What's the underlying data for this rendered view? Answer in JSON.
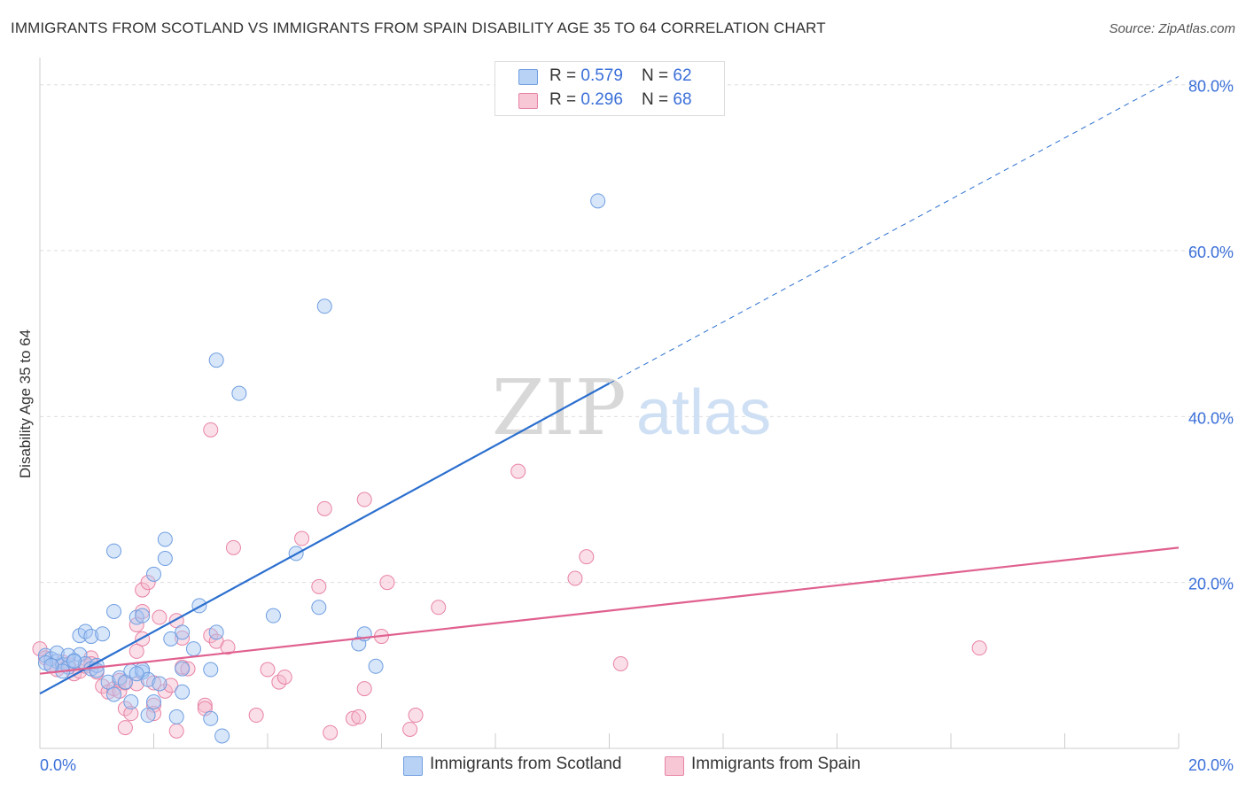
{
  "title": "IMMIGRANTS FROM SCOTLAND VS IMMIGRANTS FROM SPAIN DISABILITY AGE 35 TO 64 CORRELATION CHART",
  "source": "Source: ZipAtlas.com",
  "watermark": {
    "zip": "ZIP",
    "atlas": "atlas"
  },
  "legend": {
    "rows": [
      {
        "r_label": "R = ",
        "r_value": "0.579",
        "n_label": "N = ",
        "n_value": "62"
      },
      {
        "r_label": "R = ",
        "r_value": "0.296",
        "n_label": "N = ",
        "n_value": "68"
      }
    ]
  },
  "bottom_legend": {
    "scotland": "Immigrants from Scotland",
    "spain": "Immigrants from Spain"
  },
  "colors": {
    "scotland_fill": "#a9c8f3",
    "scotland_stroke": "#6f9ee0",
    "scotland_line": "#2b6fcf",
    "spain_fill": "#f5b8cb",
    "spain_stroke": "#e883a5",
    "spain_line": "#e0608f",
    "grid": "#dddddd",
    "axis_label": "#3a6fd8"
  },
  "chart_data": {
    "type": "scatter",
    "title": "IMMIGRANTS FROM SCOTLAND VS IMMIGRANTS FROM SPAIN DISABILITY AGE 35 TO 64 CORRELATION CHART",
    "xlabel": "",
    "ylabel": "Disability Age 35 to 64",
    "xlim": [
      0,
      20
    ],
    "ylim": [
      0,
      82
    ],
    "x_ticks": [
      "0.0%",
      "20.0%"
    ],
    "y_ticks": [
      {
        "value": 20,
        "label": "20.0%"
      },
      {
        "value": 40,
        "label": "40.0%"
      },
      {
        "value": 60,
        "label": "60.0%"
      },
      {
        "value": 80,
        "label": "80.0%"
      }
    ],
    "grid": true,
    "legend_position": "top-center",
    "series": [
      {
        "name": "Immigrants from Scotland",
        "r": 0.579,
        "n": 62,
        "trend": {
          "x": [
            0,
            10
          ],
          "y": [
            6.6,
            44.0
          ],
          "dashed_to": [
            20,
            81.0
          ]
        },
        "points": [
          [
            0.1,
            11.2
          ],
          [
            0.2,
            10.8
          ],
          [
            0.3,
            10.5
          ],
          [
            0.4,
            10.1
          ],
          [
            0.5,
            9.8
          ],
          [
            0.6,
            10.6
          ],
          [
            0.7,
            11.3
          ],
          [
            0.8,
            10.2
          ],
          [
            0.9,
            9.6
          ],
          [
            0.1,
            10.3
          ],
          [
            0.3,
            11.5
          ],
          [
            0.5,
            11.2
          ],
          [
            0.7,
            13.6
          ],
          [
            0.8,
            14.1
          ],
          [
            0.9,
            13.5
          ],
          [
            1.0,
            10.0
          ],
          [
            1.1,
            13.8
          ],
          [
            1.2,
            8.0
          ],
          [
            1.3,
            6.5
          ],
          [
            1.3,
            16.5
          ],
          [
            1.3,
            23.8
          ],
          [
            1.4,
            8.5
          ],
          [
            1.5,
            8.0
          ],
          [
            1.6,
            5.6
          ],
          [
            1.6,
            9.3
          ],
          [
            1.7,
            15.8
          ],
          [
            1.8,
            9.2
          ],
          [
            1.8,
            16.0
          ],
          [
            1.8,
            9.5
          ],
          [
            1.9,
            8.3
          ],
          [
            1.9,
            4.0
          ],
          [
            2.0,
            21.0
          ],
          [
            2.0,
            5.6
          ],
          [
            2.1,
            7.8
          ],
          [
            2.2,
            22.9
          ],
          [
            2.2,
            25.2
          ],
          [
            2.3,
            13.2
          ],
          [
            2.4,
            3.8
          ],
          [
            2.5,
            6.8
          ],
          [
            2.5,
            9.6
          ],
          [
            2.5,
            14.0
          ],
          [
            2.7,
            12.0
          ],
          [
            2.8,
            17.2
          ],
          [
            3.0,
            9.5
          ],
          [
            3.0,
            3.6
          ],
          [
            3.1,
            46.8
          ],
          [
            3.1,
            14.0
          ],
          [
            3.2,
            1.5
          ],
          [
            3.5,
            42.8
          ],
          [
            4.1,
            16.0
          ],
          [
            4.5,
            23.5
          ],
          [
            4.9,
            17.0
          ],
          [
            5.0,
            53.3
          ],
          [
            5.6,
            12.6
          ],
          [
            5.7,
            13.8
          ],
          [
            5.9,
            9.9
          ],
          [
            9.8,
            66.0
          ],
          [
            0.4,
            9.3
          ],
          [
            0.6,
            10.5
          ],
          [
            0.2,
            10.0
          ],
          [
            1.0,
            9.4
          ],
          [
            1.7,
            9.0
          ]
        ]
      },
      {
        "name": "Immigrants from Spain",
        "r": 0.296,
        "n": 68,
        "trend": {
          "x": [
            0,
            20
          ],
          "y": [
            9.0,
            24.2
          ]
        },
        "points": [
          [
            0.0,
            12.0
          ],
          [
            0.1,
            10.9
          ],
          [
            0.2,
            10.0
          ],
          [
            0.3,
            9.5
          ],
          [
            0.4,
            10.4
          ],
          [
            0.5,
            10.1
          ],
          [
            0.6,
            9.0
          ],
          [
            0.7,
            9.3
          ],
          [
            0.8,
            9.9
          ],
          [
            0.9,
            10.9
          ],
          [
            1.0,
            9.2
          ],
          [
            1.1,
            7.5
          ],
          [
            1.2,
            6.8
          ],
          [
            1.3,
            7.2
          ],
          [
            1.4,
            6.9
          ],
          [
            1.4,
            8.2
          ],
          [
            1.5,
            7.9
          ],
          [
            1.5,
            4.8
          ],
          [
            1.5,
            2.5
          ],
          [
            1.6,
            4.2
          ],
          [
            1.7,
            7.8
          ],
          [
            1.7,
            11.7
          ],
          [
            1.7,
            14.9
          ],
          [
            1.8,
            16.5
          ],
          [
            1.8,
            19.1
          ],
          [
            1.8,
            13.2
          ],
          [
            1.9,
            20.0
          ],
          [
            2.0,
            7.9
          ],
          [
            2.0,
            5.2
          ],
          [
            2.0,
            4.2
          ],
          [
            2.1,
            15.8
          ],
          [
            2.2,
            6.9
          ],
          [
            2.3,
            7.6
          ],
          [
            2.4,
            15.4
          ],
          [
            2.4,
            2.1
          ],
          [
            2.5,
            13.3
          ],
          [
            2.5,
            9.8
          ],
          [
            2.6,
            9.6
          ],
          [
            2.9,
            5.2
          ],
          [
            2.9,
            4.8
          ],
          [
            3.0,
            13.6
          ],
          [
            3.0,
            38.4
          ],
          [
            3.1,
            12.9
          ],
          [
            3.3,
            12.2
          ],
          [
            3.4,
            24.2
          ],
          [
            3.8,
            4.0
          ],
          [
            4.0,
            9.5
          ],
          [
            4.2,
            8.0
          ],
          [
            4.3,
            8.6
          ],
          [
            4.6,
            25.3
          ],
          [
            4.9,
            19.5
          ],
          [
            5.0,
            28.9
          ],
          [
            5.1,
            1.9
          ],
          [
            5.5,
            3.6
          ],
          [
            5.6,
            3.8
          ],
          [
            5.7,
            30.0
          ],
          [
            5.7,
            7.2
          ],
          [
            6.0,
            13.5
          ],
          [
            6.1,
            20.0
          ],
          [
            6.5,
            2.3
          ],
          [
            6.6,
            4.0
          ],
          [
            7.0,
            17.0
          ],
          [
            8.4,
            33.4
          ],
          [
            9.4,
            20.5
          ],
          [
            9.6,
            23.1
          ],
          [
            10.2,
            10.2
          ],
          [
            16.5,
            12.1
          ],
          [
            0.9,
            10.2
          ]
        ]
      }
    ]
  }
}
